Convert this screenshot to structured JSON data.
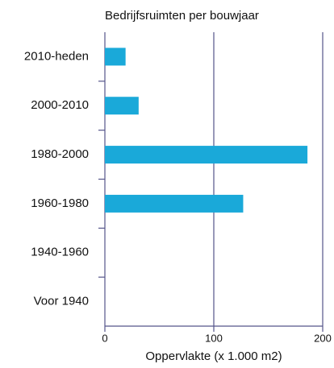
{
  "chart_data": {
    "type": "bar",
    "orientation": "horizontal",
    "title": "Bedrijfsruimten per bouwjaar",
    "xlabel": "Oppervlakte (x 1.000 m2)",
    "categories": [
      "2010-heden",
      "2000-2010",
      "1980-2000",
      "1960-1980",
      "1940-1960",
      "Voor 1940"
    ],
    "values": [
      19,
      31,
      186,
      127,
      0,
      0
    ],
    "color": "#1aa9d9",
    "xlim": [
      0,
      200
    ],
    "xticks": [
      0,
      100,
      200
    ],
    "grid": true
  }
}
